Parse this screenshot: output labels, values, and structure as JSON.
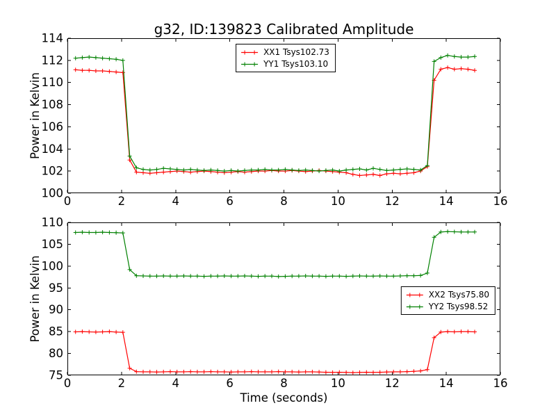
{
  "title": "g32, ID:139823 Calibrated Amplitude",
  "chart_data": [
    {
      "type": "line",
      "xlabel": "",
      "ylabel": "Power in Kelvin",
      "xlim": [
        0,
        16
      ],
      "ylim": [
        100,
        114
      ],
      "xticks": [
        0,
        2,
        4,
        6,
        8,
        10,
        12,
        14,
        16
      ],
      "yticks": [
        100,
        102,
        104,
        106,
        108,
        110,
        112,
        114
      ],
      "grid": false,
      "legend_position": "upper center",
      "marker": "+",
      "x": [
        0.3,
        0.55,
        0.8,
        1.05,
        1.3,
        1.55,
        1.8,
        2.05,
        2.3,
        2.55,
        2.8,
        3.05,
        3.3,
        3.55,
        3.8,
        4.05,
        4.3,
        4.55,
        4.8,
        5.05,
        5.3,
        5.55,
        5.8,
        6.05,
        6.3,
        6.55,
        6.8,
        7.05,
        7.3,
        7.55,
        7.8,
        8.05,
        8.3,
        8.55,
        8.8,
        9.05,
        9.3,
        9.55,
        9.8,
        10.05,
        10.3,
        10.55,
        10.8,
        11.05,
        11.3,
        11.55,
        11.8,
        12.05,
        12.3,
        12.55,
        12.8,
        13.05,
        13.3,
        13.55,
        13.8,
        14.05,
        14.3,
        14.55,
        14.8,
        15.05
      ],
      "series": [
        {
          "name": "XX1 Tsys102.73",
          "color": "#ff0000",
          "y": [
            111.15,
            111.1,
            111.1,
            111.05,
            111.05,
            111.0,
            110.95,
            110.9,
            103.0,
            101.9,
            101.85,
            101.8,
            101.85,
            101.9,
            101.95,
            102.0,
            101.95,
            101.9,
            101.95,
            102.0,
            101.95,
            101.9,
            101.85,
            101.9,
            101.95,
            101.9,
            101.95,
            102.0,
            102.0,
            102.05,
            102.0,
            102.0,
            102.05,
            102.0,
            101.95,
            102.0,
            102.05,
            102.0,
            101.95,
            101.9,
            101.85,
            101.7,
            101.6,
            101.65,
            101.7,
            101.6,
            101.75,
            101.8,
            101.75,
            101.8,
            101.85,
            102.0,
            102.4,
            110.2,
            111.2,
            111.35,
            111.2,
            111.25,
            111.2,
            111.1
          ]
        },
        {
          "name": "YY1 Tsys103.10",
          "color": "#008000",
          "y": [
            112.2,
            112.25,
            112.3,
            112.25,
            112.2,
            112.15,
            112.1,
            112.0,
            103.35,
            102.3,
            102.15,
            102.1,
            102.15,
            102.25,
            102.2,
            102.15,
            102.1,
            102.15,
            102.1,
            102.05,
            102.1,
            102.05,
            102.0,
            102.05,
            102.0,
            102.05,
            102.1,
            102.1,
            102.15,
            102.1,
            102.1,
            102.15,
            102.1,
            102.05,
            102.1,
            102.05,
            102.0,
            102.05,
            102.1,
            102.0,
            102.1,
            102.15,
            102.2,
            102.1,
            102.25,
            102.15,
            102.05,
            102.1,
            102.15,
            102.2,
            102.15,
            102.1,
            102.5,
            111.9,
            112.25,
            112.45,
            112.35,
            112.3,
            112.3,
            112.35
          ]
        }
      ]
    },
    {
      "type": "line",
      "xlabel": "Time (seconds)",
      "ylabel": "Power in Kelvin",
      "xlim": [
        0,
        16
      ],
      "ylim": [
        75,
        110
      ],
      "xticks": [
        0,
        2,
        4,
        6,
        8,
        10,
        12,
        14,
        16
      ],
      "yticks": [
        75,
        80,
        85,
        90,
        95,
        100,
        105,
        110
      ],
      "grid": false,
      "legend_position": "center right",
      "marker": "+",
      "x": [
        0.3,
        0.55,
        0.8,
        1.05,
        1.3,
        1.55,
        1.8,
        2.05,
        2.3,
        2.55,
        2.8,
        3.05,
        3.3,
        3.55,
        3.8,
        4.05,
        4.3,
        4.55,
        4.8,
        5.05,
        5.3,
        5.55,
        5.8,
        6.05,
        6.3,
        6.55,
        6.8,
        7.05,
        7.3,
        7.55,
        7.8,
        8.05,
        8.3,
        8.55,
        8.8,
        9.05,
        9.3,
        9.55,
        9.8,
        10.05,
        10.3,
        10.55,
        10.8,
        11.05,
        11.3,
        11.55,
        11.8,
        12.05,
        12.3,
        12.55,
        12.8,
        13.05,
        13.3,
        13.55,
        13.8,
        14.05,
        14.3,
        14.55,
        14.8,
        15.05
      ],
      "series": [
        {
          "name": "XX2 Tsys75.80",
          "color": "#ff0000",
          "y": [
            84.95,
            85.0,
            84.95,
            84.9,
            84.95,
            85.0,
            84.9,
            84.85,
            76.6,
            75.85,
            75.8,
            75.8,
            75.75,
            75.8,
            75.85,
            75.8,
            75.8,
            75.85,
            75.8,
            75.8,
            75.85,
            75.8,
            75.8,
            75.75,
            75.8,
            75.8,
            75.85,
            75.8,
            75.8,
            75.8,
            75.85,
            75.8,
            75.8,
            75.75,
            75.8,
            75.8,
            75.75,
            75.7,
            75.65,
            75.7,
            75.65,
            75.6,
            75.65,
            75.7,
            75.65,
            75.7,
            75.75,
            75.8,
            75.8,
            75.85,
            75.9,
            76.0,
            76.3,
            83.6,
            84.9,
            85.0,
            84.95,
            85.0,
            85.0,
            84.95
          ]
        },
        {
          "name": "YY2 Tsys98.52",
          "color": "#008000",
          "y": [
            107.7,
            107.75,
            107.7,
            107.7,
            107.75,
            107.7,
            107.65,
            107.6,
            99.2,
            97.8,
            97.75,
            97.7,
            97.7,
            97.75,
            97.7,
            97.7,
            97.75,
            97.7,
            97.7,
            97.65,
            97.7,
            97.7,
            97.75,
            97.7,
            97.7,
            97.75,
            97.7,
            97.65,
            97.7,
            97.7,
            97.6,
            97.65,
            97.7,
            97.7,
            97.75,
            97.7,
            97.7,
            97.65,
            97.7,
            97.7,
            97.65,
            97.7,
            97.75,
            97.7,
            97.7,
            97.75,
            97.7,
            97.7,
            97.75,
            97.8,
            97.8,
            97.85,
            98.4,
            106.6,
            107.8,
            107.9,
            107.85,
            107.8,
            107.8,
            107.8
          ]
        }
      ]
    }
  ]
}
